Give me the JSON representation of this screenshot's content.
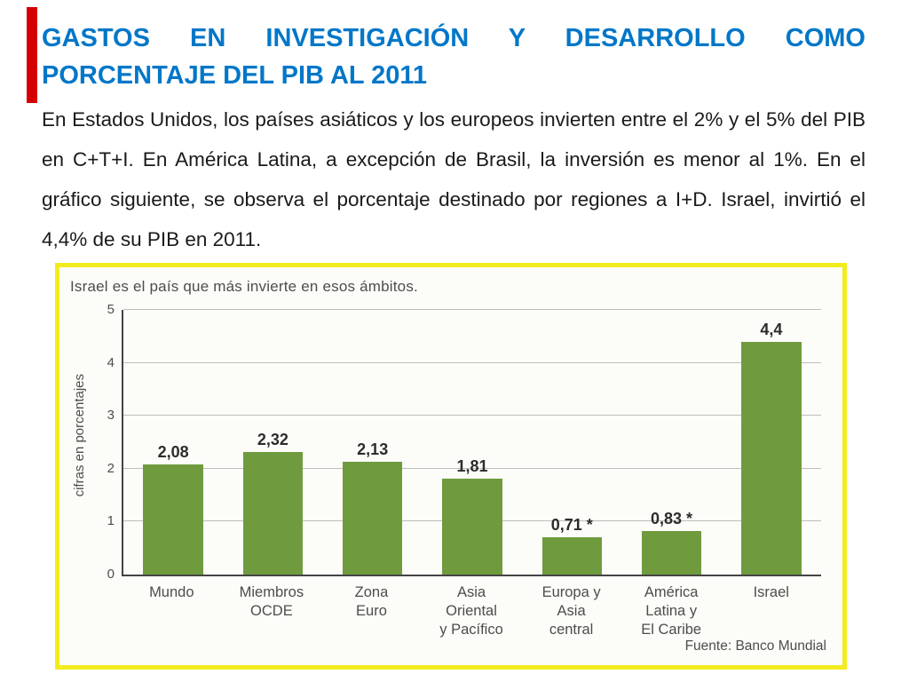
{
  "title": {
    "line1": "GASTOS EN INVESTIGACIÓN Y DESARROLLO COMO",
    "line2": "PORCENTAJE DEL PIB AL 2011"
  },
  "body": {
    "text": "En Estados Unidos, los países asiáticos y los europeos invierten entre el 2% y el 5% del PIB en C+T+I. En América Latina, a excepción de Brasil, la inversión es menor al 1%. En el gráfico siguiente, se observa el porcentaje destinado por regiones a I+D. Israel, invirtió el 4,4% de su PIB en 2011."
  },
  "colors": {
    "title_blue": "#0077C8",
    "accent_red": "#D40000",
    "bar_green": "#6F9B3E",
    "frame_yellow": "#F2EC1E"
  },
  "chart_data": {
    "type": "bar",
    "title": "Israel es el país que más invierte en esos ámbitos.",
    "ylabel": "cifras en porcentajes",
    "ylim": [
      0,
      5
    ],
    "yticks": [
      0,
      1,
      2,
      3,
      4,
      5
    ],
    "grid": true,
    "legend": false,
    "bar_color": "#6F9B3E",
    "categories": [
      "Mundo",
      "Miembros\nOCDE",
      "Zona\nEuro",
      "Asia\nOriental\ny Pacífico",
      "Europa y\nAsia\ncentral",
      "América\nLatina y\nEl Caribe",
      "Israel"
    ],
    "values": [
      2.08,
      2.32,
      2.13,
      1.81,
      0.71,
      0.83,
      4.4
    ],
    "value_labels": [
      "2,08",
      "2,32",
      "2,13",
      "1,81",
      "0,71 *",
      "0,83 *",
      "4,4"
    ],
    "source": "Fuente: Banco Mundial"
  }
}
